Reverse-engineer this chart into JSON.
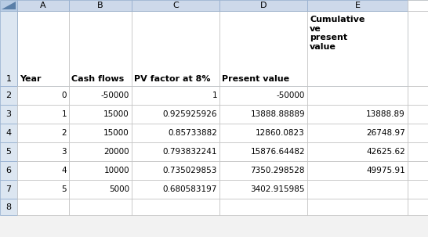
{
  "col_letters": [
    "",
    "A",
    "B",
    "C",
    "D",
    "E",
    ""
  ],
  "row_numbers": [
    "",
    "1",
    "2",
    "3",
    "4",
    "5",
    "6",
    "7",
    "8"
  ],
  "header_row": [
    "Year",
    "Cash flows",
    "PV factor at 8%",
    "Present value",
    "Cumulative\nve\npresent\nvalue"
  ],
  "rows": [
    [
      "0",
      "-50000",
      "1",
      "-50000",
      ""
    ],
    [
      "1",
      "15000",
      "0.925925926",
      "13888.88889",
      "13888.89"
    ],
    [
      "2",
      "15000",
      "0.85733882",
      "12860.0823",
      "26748.97"
    ],
    [
      "3",
      "20000",
      "0.793832241",
      "15876.64482",
      "42625.62"
    ],
    [
      "4",
      "10000",
      "0.735029853",
      "7350.298528",
      "49975.91"
    ],
    [
      "5",
      "5000",
      "0.680583197",
      "3402.915985",
      ""
    ]
  ],
  "col_header_bg": "#cdd9ea",
  "row_header_bg": "#dce6f1",
  "cell_bg": "#ffffff",
  "text_color": "#000000",
  "corner_bg": "#b8cce4",
  "fig_bg": "#f2f2f2",
  "border_color": "#8eaacc",
  "inner_border_color": "#bfbfbf"
}
